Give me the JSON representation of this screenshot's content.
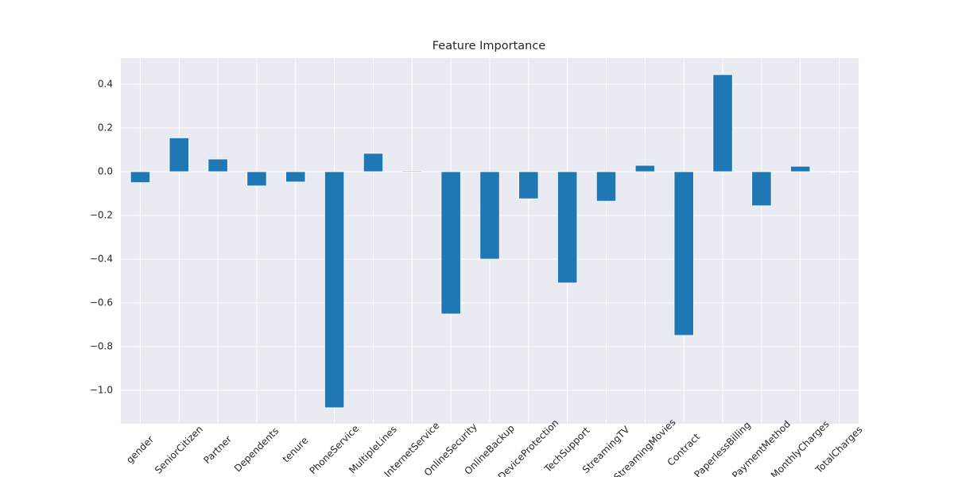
{
  "chart_data": {
    "type": "bar",
    "title": "Feature Importance",
    "categories": [
      "gender",
      "SeniorCitizen",
      "Partner",
      "Dependents",
      "tenure",
      "PhoneService",
      "MultipleLines",
      "InternetService",
      "OnlineSecurity",
      "OnlineBackup",
      "DeviceProtection",
      "TechSupport",
      "StreamingTV",
      "StreamingMovies",
      "Contract",
      "PaperlessBilling",
      "PaymentMethod",
      "MonthlyCharges",
      "TotalCharges"
    ],
    "values": [
      -0.05,
      0.155,
      0.058,
      -0.065,
      -0.047,
      -1.08,
      0.084,
      0.004,
      -0.651,
      -0.4,
      -0.124,
      -0.509,
      -0.135,
      0.029,
      -0.749,
      0.444,
      -0.156,
      0.025,
      -0.002
    ],
    "color": "#1f77b4",
    "ylim": [
      -1.153,
      0.52
    ],
    "yticks": [
      {
        "value": -1.0,
        "label": "−1.0"
      },
      {
        "value": -0.8,
        "label": "−0.8"
      },
      {
        "value": -0.6,
        "label": "−0.6"
      },
      {
        "value": -0.4,
        "label": "−0.4"
      },
      {
        "value": -0.2,
        "label": "−0.2"
      },
      {
        "value": 0,
        "label": "0.0"
      },
      {
        "value": 0.2,
        "label": "0.2"
      },
      {
        "value": 0.4,
        "label": "0.4"
      }
    ],
    "grid": true
  }
}
